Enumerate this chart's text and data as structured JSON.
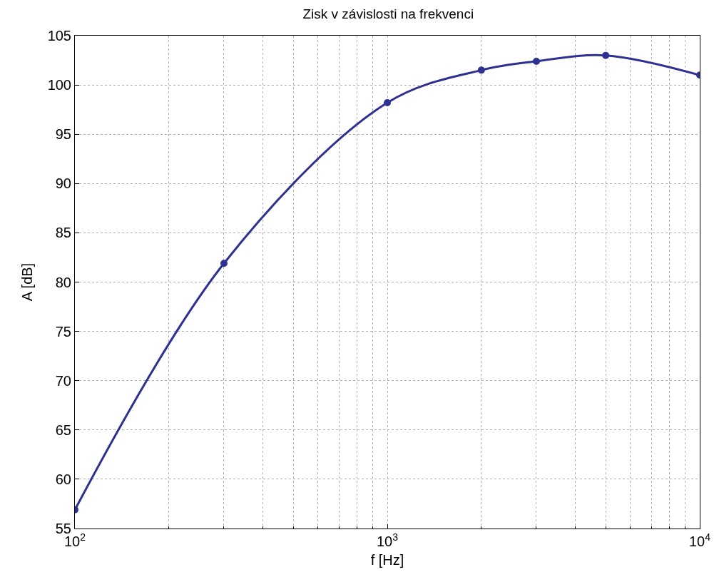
{
  "chart_data": {
    "type": "line",
    "title": "Zisk v závislosti na frekvenci",
    "xlabel": "f [Hz]",
    "ylabel": "A [dB]",
    "log": "x",
    "x": [
      100,
      300,
      1000,
      2000,
      3000,
      5000,
      10000
    ],
    "series": [
      {
        "color": "#2e3192",
        "values": [
          56.9,
          81.9,
          98.2,
          101.5,
          102.4,
          103.0,
          101.0
        ]
      }
    ],
    "xlim": [
      100,
      10000
    ],
    "xticks": [
      {
        "value": 100,
        "label": "10$^{2}$"
      },
      {
        "value": 1000,
        "label": "10$^{3}$"
      },
      {
        "value": 10000,
        "label": "10$^{4}$"
      }
    ],
    "ylim": [
      55,
      105
    ],
    "yticks": [
      55,
      60,
      65,
      70,
      75,
      80,
      85,
      90,
      95,
      100,
      105
    ],
    "grid": true,
    "marker": "circle",
    "line_style": "solid",
    "legend": false
  }
}
